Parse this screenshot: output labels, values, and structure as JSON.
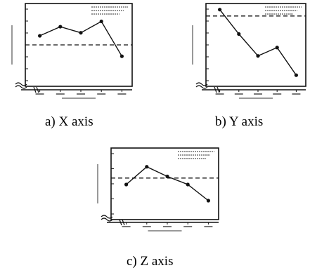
{
  "colors": {
    "ink": "#111111",
    "background": "#ffffff"
  },
  "chart_data": [
    {
      "type": "line",
      "caption": "a)  X  axis",
      "categories": [
        "",
        "",
        "",
        "",
        ""
      ],
      "values": [
        1.2,
        2.4,
        1.6,
        3.1,
        -1.5
      ],
      "reference": 0,
      "ylim": [
        -5,
        5
      ],
      "grid": false,
      "legend": "top-right",
      "xlabel": "",
      "ylabel": ""
    },
    {
      "type": "line",
      "caption": "b)  Y  axis",
      "categories": [
        "",
        "",
        "",
        "",
        ""
      ],
      "values": [
        10.6,
        6.8,
        3.4,
        4.7,
        0.4
      ],
      "reference": 9.6,
      "ylim": [
        -1,
        11
      ],
      "grid": false,
      "legend": "top-right",
      "xlabel": "",
      "ylabel": ""
    },
    {
      "type": "line",
      "caption": "c)  Z  axis",
      "categories": [
        "",
        "",
        "",
        "",
        ""
      ],
      "values": [
        9.6,
        10.7,
        10.1,
        9.6,
        8.6
      ],
      "reference": 10.0,
      "ylim": [
        7.6,
        11.6
      ],
      "grid": false,
      "legend": "top-right",
      "xlabel": "",
      "ylabel": ""
    }
  ]
}
